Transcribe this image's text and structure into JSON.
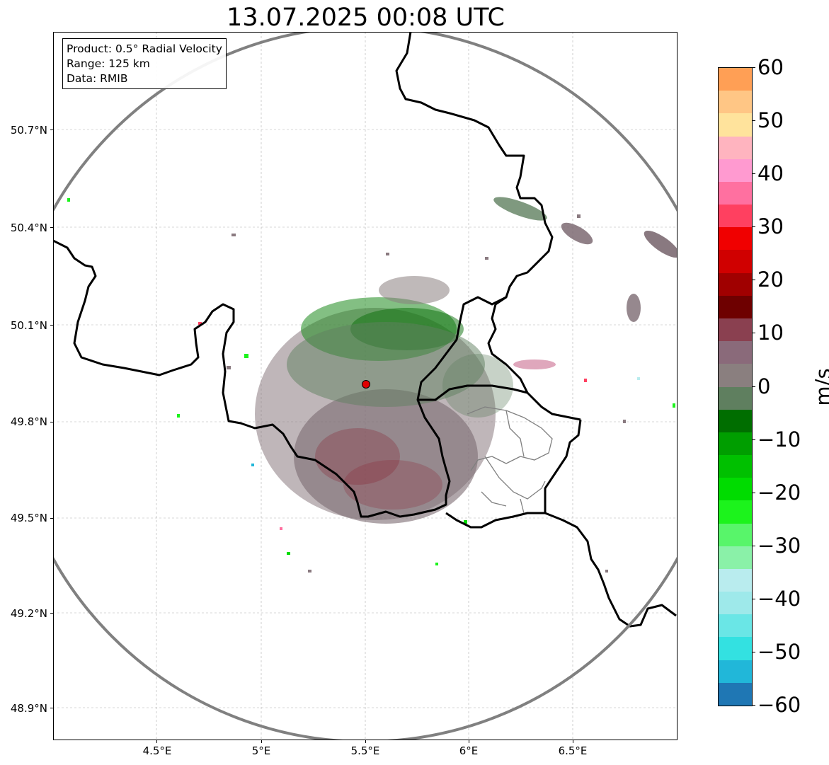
{
  "title": "13.07.2025 00:08 UTC",
  "info_box": {
    "product": "Product: 0.5° Radial Velocity",
    "range": "Range: 125 km",
    "data_source": "Data: RMIB"
  },
  "map": {
    "lat_ticks": [
      "50.7°N",
      "50.4°N",
      "50.1°N",
      "49.8°N",
      "49.5°N",
      "49.2°N",
      "48.9°N"
    ],
    "lon_ticks": [
      "4.5°E",
      "5°E",
      "5.5°E",
      "6°E",
      "6.5°E"
    ],
    "radar_site": "radar-location",
    "range_ring_color": "#808080",
    "border_color": "#000000",
    "subregion_border_color": "#808080"
  },
  "colorbar": {
    "unit": "m/s",
    "min": -60,
    "max": 60,
    "tick_labels": [
      "60",
      "50",
      "40",
      "30",
      "20",
      "10",
      "0",
      "−10",
      "−20",
      "−30",
      "−40",
      "−50",
      "−60"
    ],
    "colors": [
      "#1f77b4",
      "#21b7d9",
      "#33e1e1",
      "#6ae6e6",
      "#9ee9ea",
      "#b9ecee",
      "#8af1a8",
      "#58f56a",
      "#1cf31c",
      "#00dc00",
      "#00c000",
      "#009e00",
      "#006e00",
      "#5f7f5f",
      "#8a7f7f",
      "#8a6a7a",
      "#8a4050",
      "#6e0000",
      "#a00000",
      "#d00000",
      "#f00000",
      "#ff4060",
      "#ff70a0",
      "#ff9ad0",
      "#ffb4bf",
      "#ffe39c",
      "#ffc685",
      "#ff9f55"
    ]
  }
}
